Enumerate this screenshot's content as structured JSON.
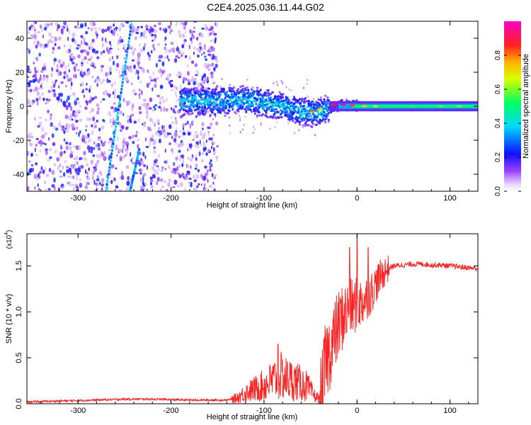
{
  "figure_title": "C2E4.2025.036.11.44.G02",
  "colors": {
    "accent_red": "#ff2020",
    "axis": "#000000",
    "background": "#ffffff"
  },
  "chart_data": [
    {
      "type": "heatmap",
      "title": "",
      "xlabel": "Height of straight line (km)",
      "ylabel": "Frequency (Hz)",
      "xlim": [
        -355,
        130
      ],
      "ylim": [
        -50,
        50
      ],
      "x_ticks": [
        -300,
        -200,
        -100,
        0,
        100
      ],
      "x_tick_labels": [
        "-300",
        "-200",
        "-100",
        "0",
        "100"
      ],
      "y_ticks": [
        -40,
        -20,
        0,
        20,
        40
      ],
      "y_tick_labels": [
        "-40",
        "-20",
        "0",
        "20",
        "40"
      ],
      "colorbar": {
        "label": "Normalized spectral amplitude",
        "range": [
          0,
          1
        ],
        "ticks": [
          0.0,
          0.2,
          0.4,
          0.6,
          0.8
        ],
        "tick_labels": [
          "0.0",
          "0.2",
          "0.4",
          "0.6",
          "0.8"
        ],
        "colormap": "rainbow (white-violet-blue-cyan-green-yellow-red-magenta)"
      },
      "features": {
        "noise_region_x": [
          -355,
          -150
        ],
        "signal_track": [
          {
            "x": -190,
            "f": 3
          },
          {
            "x": -150,
            "f": 3
          },
          {
            "x": -120,
            "f": 4
          },
          {
            "x": -90,
            "f": 1
          },
          {
            "x": -60,
            "f": -3
          },
          {
            "x": -45,
            "f": -4
          },
          {
            "x": -30,
            "f": -1
          },
          {
            "x": -15,
            "f": 1
          },
          {
            "x": 0,
            "f": 0.5
          },
          {
            "x": 50,
            "f": 0
          },
          {
            "x": 130,
            "f": 0
          }
        ],
        "diagonal_track_1": {
          "x": [
            -270,
            -242
          ],
          "f": [
            -50,
            50
          ]
        },
        "diagonal_track_2": {
          "x": [
            -244,
            -234
          ],
          "f": [
            -50,
            -25
          ]
        }
      }
    },
    {
      "type": "line",
      "title": "",
      "xlabel": "Height of straight line (km)",
      "ylabel": "SNR (10 * v/v)",
      "y_multiplier": "(x10",
      "y_multiplier_exp": "4",
      "y_multiplier_close": ")",
      "xlim": [
        -355,
        130
      ],
      "ylim": [
        0,
        1.85
      ],
      "x_ticks": [
        -300,
        -200,
        -100,
        0,
        100
      ],
      "x_tick_labels": [
        "-300",
        "-200",
        "-100",
        "0",
        "100"
      ],
      "y_ticks": [
        0.0,
        0.5,
        1.0,
        1.5
      ],
      "y_tick_labels": [
        "0.0",
        "0.5",
        "1.0",
        "1.5"
      ],
      "series": [
        {
          "name": "SNR",
          "color": "#ff2020",
          "x": [
            -355,
            -320,
            -280,
            -250,
            -220,
            -180,
            -160,
            -140,
            -130,
            -120,
            -110,
            -100,
            -90,
            -82,
            -75,
            -65,
            -55,
            -45,
            -38,
            -34,
            -30,
            -25,
            -20,
            -15,
            -10,
            -5,
            0,
            5,
            10,
            15,
            20,
            25,
            30,
            35,
            40,
            50,
            60,
            70,
            80,
            90,
            100,
            110,
            120,
            130
          ],
          "y": [
            0.02,
            0.03,
            0.04,
            0.05,
            0.05,
            0.04,
            0.04,
            0.04,
            0.06,
            0.12,
            0.16,
            0.2,
            0.26,
            0.3,
            0.27,
            0.24,
            0.2,
            0.08,
            0.04,
            0.45,
            0.55,
            0.7,
            0.85,
            0.95,
            1.0,
            1.05,
            1.08,
            1.1,
            1.15,
            1.2,
            1.3,
            1.38,
            1.44,
            1.48,
            1.5,
            1.51,
            1.52,
            1.52,
            1.51,
            1.51,
            1.5,
            1.49,
            1.48,
            1.47
          ]
        }
      ],
      "peaks": [
        {
          "x": -85,
          "y": 0.65
        },
        {
          "x": -8,
          "y": 1.7
        },
        {
          "x": 0,
          "y": 1.85
        },
        {
          "x": 12,
          "y": 1.7
        }
      ]
    }
  ]
}
